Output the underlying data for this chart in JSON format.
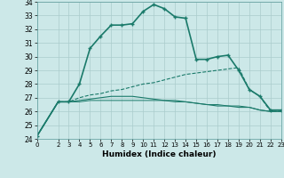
{
  "title": "",
  "xlabel": "Humidex (Indice chaleur)",
  "background_color": "#cce8e8",
  "grid_color": "#aacccc",
  "line_color": "#1a7a6a",
  "xlim": [
    0,
    23
  ],
  "ylim": [
    24,
    34
  ],
  "xticks": [
    0,
    2,
    3,
    4,
    5,
    6,
    7,
    8,
    9,
    10,
    11,
    12,
    13,
    14,
    15,
    16,
    17,
    18,
    19,
    20,
    21,
    22,
    23
  ],
  "yticks": [
    24,
    25,
    26,
    27,
    28,
    29,
    30,
    31,
    32,
    33,
    34
  ],
  "series": [
    {
      "x": [
        0,
        2,
        3,
        4,
        5,
        6,
        7,
        8,
        9,
        10,
        11,
        12,
        13,
        14,
        15,
        16,
        17,
        18,
        19,
        20,
        21,
        22,
        23
      ],
      "y": [
        24.2,
        26.7,
        26.7,
        28.0,
        30.6,
        31.5,
        32.3,
        32.3,
        32.4,
        33.3,
        33.8,
        33.5,
        32.9,
        32.8,
        29.8,
        29.8,
        30.0,
        30.1,
        29.0,
        27.6,
        27.1,
        26.1,
        26.1
      ],
      "marker": "+",
      "linestyle": "-",
      "linewidth": 1.2
    },
    {
      "x": [
        0,
        2,
        3,
        4,
        5,
        6,
        7,
        8,
        9,
        10,
        11,
        12,
        13,
        14,
        15,
        16,
        17,
        18,
        19,
        20,
        21,
        22,
        23
      ],
      "y": [
        24.2,
        26.7,
        26.7,
        27.0,
        27.2,
        27.3,
        27.5,
        27.6,
        27.8,
        28.0,
        28.1,
        28.3,
        28.5,
        28.7,
        28.8,
        28.9,
        29.0,
        29.1,
        29.2,
        27.6,
        27.1,
        26.0,
        26.0
      ],
      "marker": null,
      "linestyle": "--",
      "linewidth": 0.8
    },
    {
      "x": [
        0,
        2,
        3,
        4,
        5,
        6,
        7,
        8,
        9,
        10,
        11,
        12,
        13,
        14,
        15,
        16,
        17,
        18,
        19,
        20,
        21,
        22,
        23
      ],
      "y": [
        24.2,
        26.7,
        26.7,
        26.8,
        26.9,
        27.0,
        27.1,
        27.1,
        27.1,
        27.0,
        26.9,
        26.8,
        26.8,
        26.7,
        26.6,
        26.5,
        26.4,
        26.4,
        26.3,
        26.3,
        26.1,
        26.0,
        26.0
      ],
      "marker": null,
      "linestyle": "-",
      "linewidth": 0.8
    },
    {
      "x": [
        0,
        2,
        3,
        4,
        5,
        6,
        7,
        8,
        9,
        10,
        11,
        12,
        13,
        14,
        15,
        16,
        17,
        18,
        19,
        20,
        21,
        22,
        23
      ],
      "y": [
        24.2,
        26.7,
        26.7,
        26.7,
        26.8,
        26.8,
        26.8,
        26.8,
        26.8,
        26.8,
        26.8,
        26.8,
        26.7,
        26.7,
        26.6,
        26.5,
        26.5,
        26.4,
        26.4,
        26.3,
        26.1,
        26.0,
        26.0
      ],
      "marker": null,
      "linestyle": "-",
      "linewidth": 0.7
    }
  ]
}
